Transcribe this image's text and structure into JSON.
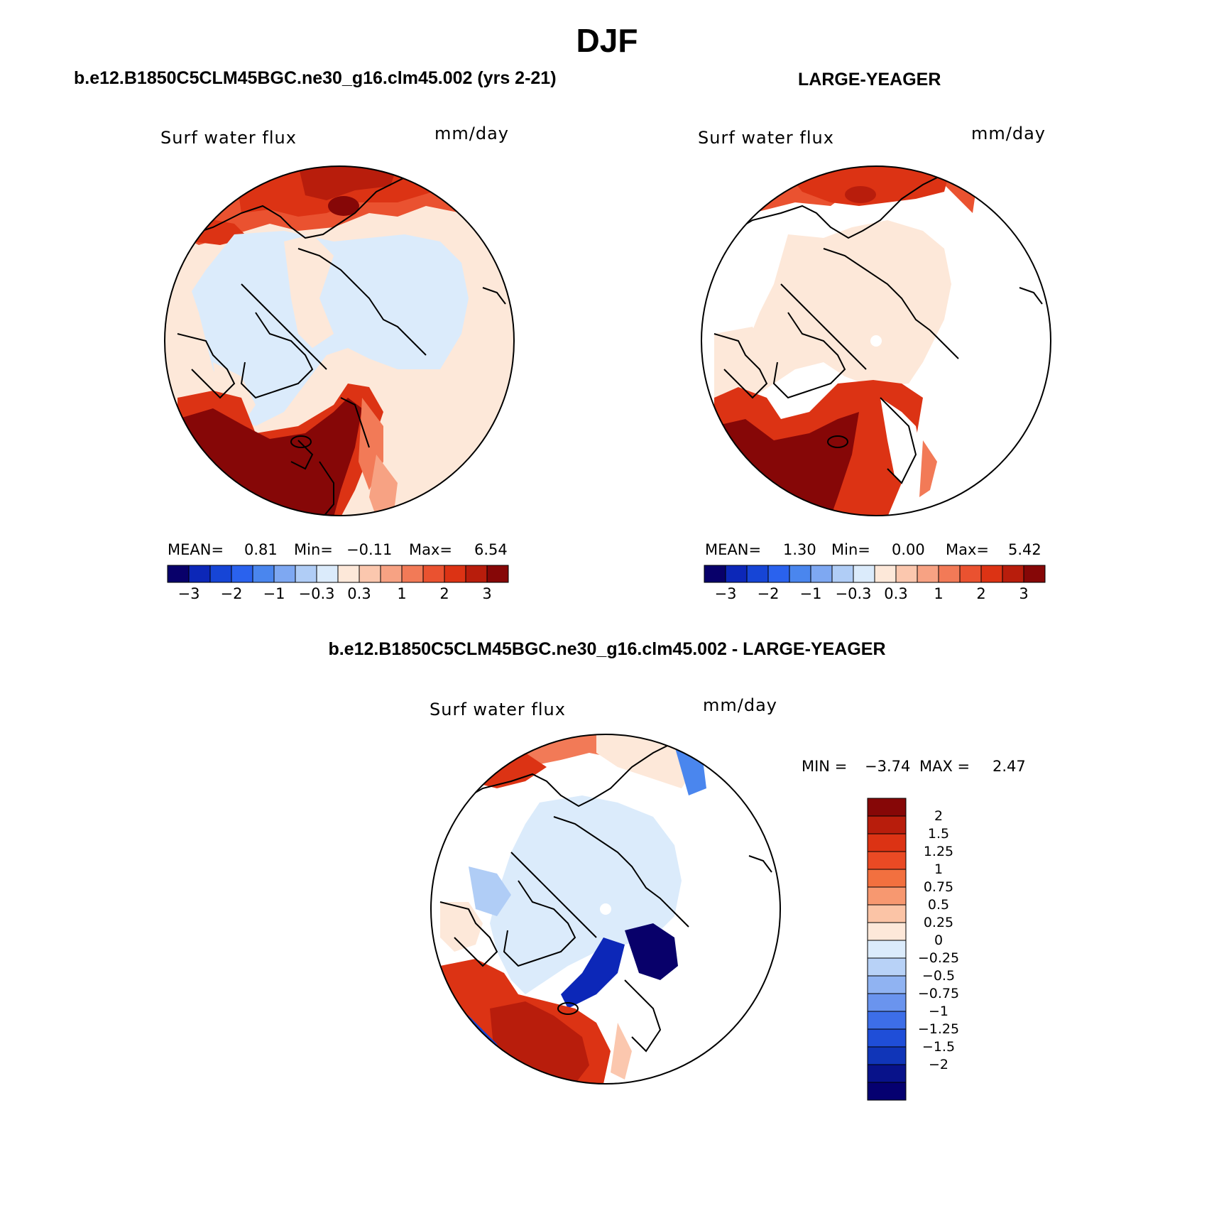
{
  "figure": {
    "title": "DJF",
    "case1_title": "b.e12.B1850C5CLM45BGC.ne30_g16.clm45.002 (yrs 2-21)",
    "case2_title": "LARGE-YEAGER",
    "diff_title": "b.e12.B1850C5CLM45BGC.ne30_g16.clm45.002 - LARGE-YEAGER"
  },
  "panels": [
    {
      "variable": "Surf water flux",
      "units": "mm/day",
      "mean_label": "MEAN=",
      "mean": "0.81",
      "min_label": "Min=",
      "min": "−0.11",
      "max_label": "Max=",
      "max": "6.54"
    },
    {
      "variable": "Surf water flux",
      "units": "mm/day",
      "mean_label": "MEAN=",
      "mean": "1.30",
      "min_label": "Min=",
      "min": "0.00",
      "max_label": "Max=",
      "max": "5.42"
    },
    {
      "variable": "Surf water flux",
      "units": "mm/day",
      "min_label": "MIN =",
      "min": "−3.74",
      "max_label": "MAX =",
      "max": "2.47"
    }
  ],
  "colorbar_main": {
    "colors": [
      "#08006a",
      "#0c27b8",
      "#1645d6",
      "#2a62ee",
      "#4a86ee",
      "#7ea8f2",
      "#b0cdf6",
      "#dbebfb",
      "#fde8d9",
      "#fbc7ae",
      "#f7a283",
      "#f27a57",
      "#ea5230",
      "#dc3314",
      "#b81d0c",
      "#860707"
    ],
    "tick_labels": [
      "−3",
      "−2",
      "−1",
      "−0.3",
      "0.3",
      "1",
      "2",
      "3"
    ]
  },
  "colorbar_diff": {
    "colors": [
      "#860707",
      "#b81d0c",
      "#dc3314",
      "#ea4a24",
      "#f2703f",
      "#f79870",
      "#fbc4a6",
      "#fde8d9",
      "#dbebfb",
      "#b8d2f7",
      "#90b3f2",
      "#6a94ee",
      "#3d6ee8",
      "#1f4ed8",
      "#1035b8",
      "#08128a",
      "#050070"
    ],
    "tick_labels": [
      "2",
      "1.5",
      "1.25",
      "1",
      "0.75",
      "0.5",
      "0.25",
      "0",
      "−0.25",
      "−0.5",
      "−0.75",
      "−1",
      "−1.25",
      "−1.5",
      "−2"
    ]
  }
}
